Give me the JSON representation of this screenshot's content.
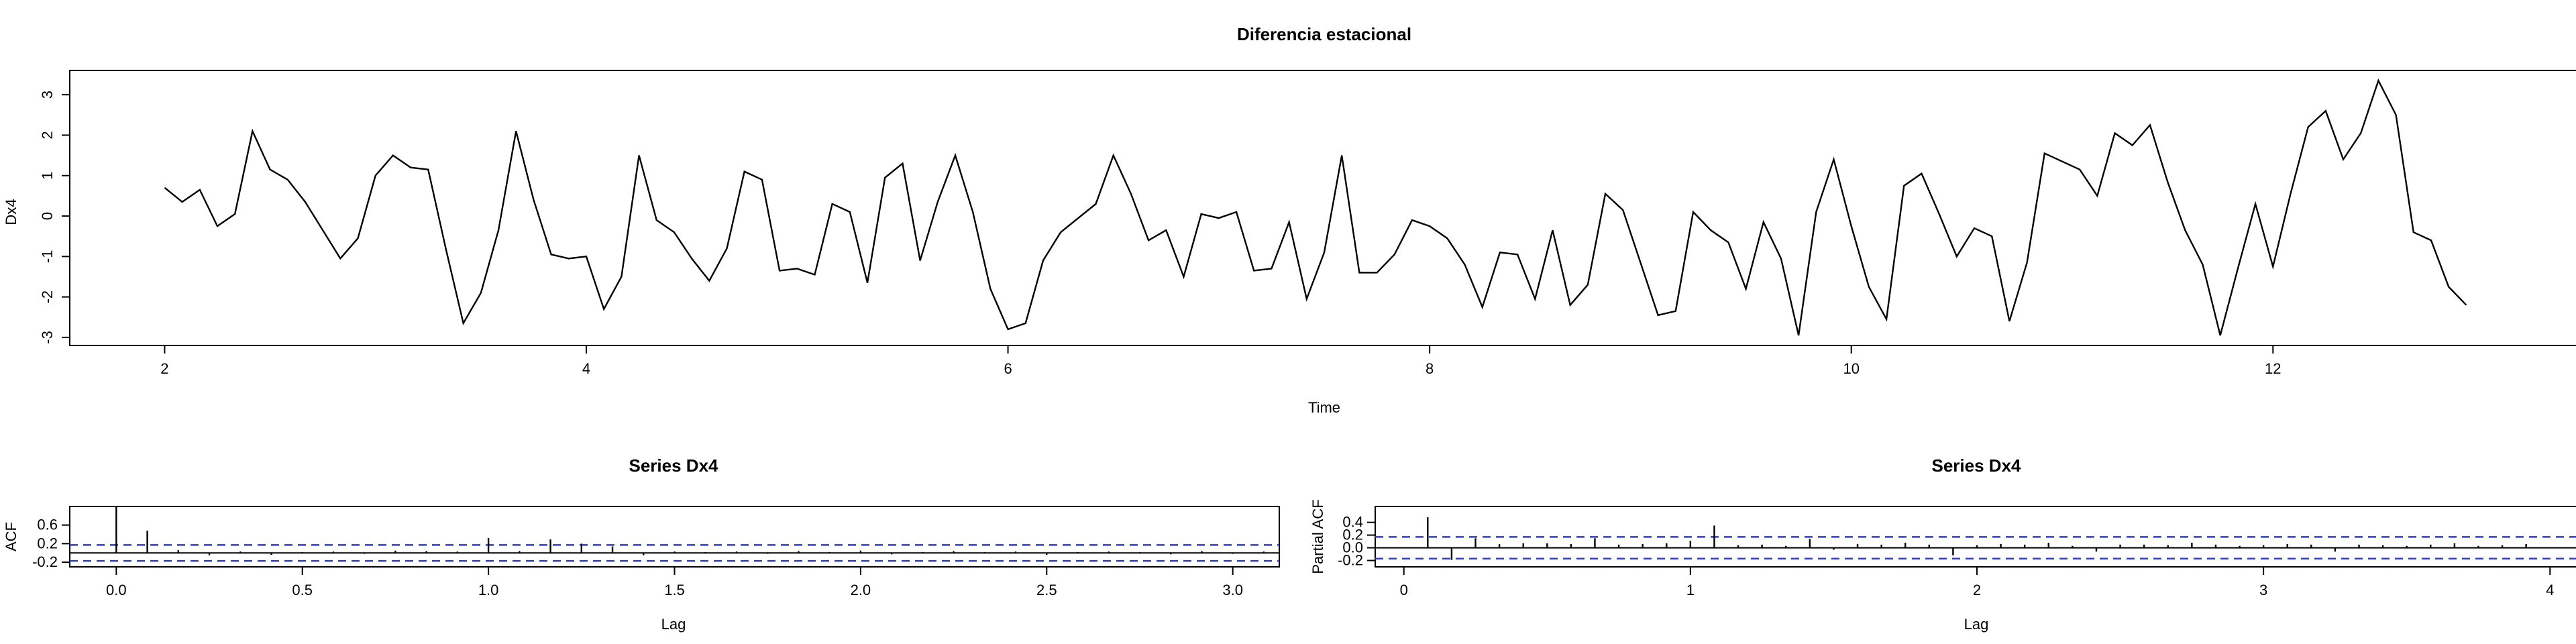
{
  "colors": {
    "line": "#000000",
    "ci": "#2a3fc8",
    "axis": "#000000"
  },
  "chart_data": [
    {
      "type": "line",
      "title": "Diferencia estacional",
      "xlabel": "Time",
      "ylabel": "Dx4",
      "x_start": 2.0,
      "x_step": 0.0833333,
      "xlim": [
        1.55,
        13.45
      ],
      "ylim": [
        -3.2,
        3.6
      ],
      "xticks": [
        2,
        4,
        6,
        8,
        10,
        12
      ],
      "yticks": [
        -3,
        -2,
        -1,
        0,
        1,
        2,
        3
      ],
      "values": [
        0.7,
        0.35,
        0.65,
        -0.25,
        0.05,
        2.1,
        1.15,
        0.9,
        0.35,
        -0.35,
        -1.05,
        -0.55,
        1.0,
        1.5,
        1.2,
        1.15,
        -0.8,
        -2.65,
        -1.9,
        -0.35,
        2.1,
        0.4,
        -0.95,
        -1.05,
        -1.0,
        -2.3,
        -1.5,
        1.5,
        -0.1,
        -0.4,
        -1.05,
        -1.6,
        -0.8,
        1.1,
        0.9,
        -1.35,
        -1.3,
        -1.45,
        0.3,
        0.1,
        -1.65,
        0.95,
        1.3,
        -1.1,
        0.35,
        1.5,
        0.1,
        -1.8,
        -2.8,
        -2.65,
        -1.1,
        -0.4,
        -0.05,
        0.3,
        1.5,
        0.55,
        -0.6,
        -0.35,
        -1.5,
        0.05,
        -0.05,
        0.1,
        -1.35,
        -1.3,
        -0.15,
        -2.05,
        -0.9,
        1.5,
        -1.4,
        -1.4,
        -0.95,
        -0.1,
        -0.25,
        -0.55,
        -1.2,
        -2.25,
        -0.9,
        -0.95,
        -2.05,
        -0.35,
        -2.2,
        -1.7,
        0.55,
        0.15,
        -1.15,
        -2.45,
        -2.35,
        0.1,
        -0.35,
        -0.65,
        -1.8,
        -0.15,
        -1.05,
        -2.95,
        0.1,
        1.4,
        -0.25,
        -1.75,
        -2.55,
        0.75,
        1.05,
        0.05,
        -1.0,
        -0.3,
        -0.5,
        -2.6,
        -1.15,
        1.55,
        1.35,
        1.15,
        0.5,
        2.05,
        1.75,
        2.25,
        0.85,
        -0.35,
        -1.2,
        -2.95,
        -1.3,
        0.3,
        -1.25,
        0.55,
        2.2,
        2.6,
        1.4,
        2.05,
        3.35,
        2.5,
        -0.4,
        -0.6,
        -1.75,
        -2.2
      ]
    },
    {
      "type": "bar",
      "title": "Series  Dx4",
      "xlabel": "Lag",
      "ylabel": "ACF",
      "x_start": 0,
      "x_step": 0.0833333,
      "xlim": [
        -0.125,
        3.125
      ],
      "ylim": [
        -0.3,
        1.0
      ],
      "xticks": [
        0.0,
        0.5,
        1.0,
        1.5,
        2.0,
        2.5,
        3.0
      ],
      "xtick_labels": [
        "0.0",
        "0.5",
        "1.0",
        "1.5",
        "2.0",
        "2.5",
        "3.0"
      ],
      "yticks": [
        -0.2,
        0.2,
        0.6
      ],
      "ytick_labels": [
        "-0.2",
        "0.2",
        "0.6"
      ],
      "ci": 0.171,
      "values": [
        1.0,
        0.48,
        0.06,
        -0.05,
        0.03,
        -0.04,
        0.02,
        0.03,
        -0.02,
        0.05,
        0.04,
        0.03,
        0.32,
        0.04,
        0.29,
        0.2,
        0.14,
        -0.05,
        0.03,
        0.02,
        0.03,
        -0.02,
        0.04,
        0.02,
        0.05,
        -0.03,
        0.02,
        0.04,
        0.02,
        0.03,
        -0.04,
        0.02,
        0.03,
        0.02,
        -0.03,
        0.04,
        -0.02,
        0.03
      ]
    },
    {
      "type": "bar",
      "title": "Series  Dx4",
      "xlabel": "Lag",
      "ylabel": "Partial ACF",
      "x_start": 0.0833333,
      "x_step": 0.0833333,
      "xlim": [
        -0.1,
        4.1
      ],
      "ylim": [
        -0.3,
        0.65
      ],
      "xticks": [
        0,
        1,
        2,
        3,
        4
      ],
      "xtick_labels": [
        "0",
        "1",
        "2",
        "3",
        "4"
      ],
      "yticks": [
        -0.2,
        0.0,
        0.2,
        0.4
      ],
      "ytick_labels": [
        "-0.2",
        "0.0",
        "0.2",
        "0.4"
      ],
      "ci": 0.171,
      "values": [
        0.48,
        -0.19,
        0.15,
        0.06,
        0.07,
        0.07,
        0.06,
        0.15,
        0.05,
        0.06,
        0.07,
        0.11,
        0.35,
        0.04,
        0.05,
        0.03,
        0.14,
        -0.03,
        0.06,
        0.05,
        0.08,
        0.05,
        -0.12,
        0.04,
        0.06,
        0.05,
        0.08,
        0.03,
        -0.06,
        0.05,
        0.05,
        0.04,
        0.08,
        0.05,
        0.03,
        0.04,
        0.06,
        0.05,
        -0.06,
        0.05,
        0.04,
        0.03,
        0.05,
        0.07,
        0.03,
        0.04,
        0.06
      ]
    }
  ]
}
